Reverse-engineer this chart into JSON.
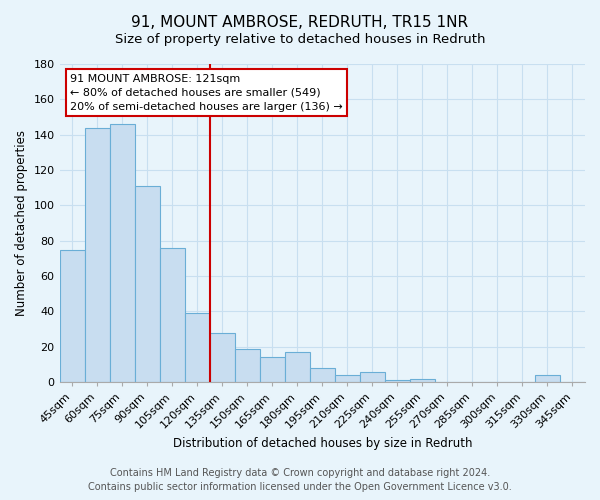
{
  "title": "91, MOUNT AMBROSE, REDRUTH, TR15 1NR",
  "subtitle": "Size of property relative to detached houses in Redruth",
  "xlabel": "Distribution of detached houses by size in Redruth",
  "ylabel": "Number of detached properties",
  "bar_labels": [
    "45sqm",
    "60sqm",
    "75sqm",
    "90sqm",
    "105sqm",
    "120sqm",
    "135sqm",
    "150sqm",
    "165sqm",
    "180sqm",
    "195sqm",
    "210sqm",
    "225sqm",
    "240sqm",
    "255sqm",
    "270sqm",
    "285sqm",
    "300sqm",
    "315sqm",
    "330sqm",
    "345sqm"
  ],
  "bar_values": [
    75,
    144,
    146,
    111,
    76,
    39,
    28,
    19,
    14,
    17,
    8,
    4,
    6,
    1,
    2,
    0,
    0,
    0,
    0,
    4,
    0
  ],
  "bar_color": "#c8ddf0",
  "bar_edge_color": "#6aaed6",
  "annotation_title": "91 MOUNT AMBROSE: 121sqm",
  "annotation_line1": "← 80% of detached houses are smaller (549)",
  "annotation_line2": "20% of semi-detached houses are larger (136) →",
  "annotation_box_color": "#ffffff",
  "annotation_box_edge": "#cc0000",
  "vline_color": "#cc0000",
  "vline_x": 5.5,
  "ylim": [
    0,
    180
  ],
  "yticks": [
    0,
    20,
    40,
    60,
    80,
    100,
    120,
    140,
    160,
    180
  ],
  "footer1": "Contains HM Land Registry data © Crown copyright and database right 2024.",
  "footer2": "Contains public sector information licensed under the Open Government Licence v3.0.",
  "background_color": "#e8f4fb",
  "grid_color": "#c8dff0",
  "title_fontsize": 11,
  "axis_label_fontsize": 8.5,
  "tick_fontsize": 8,
  "footer_fontsize": 7
}
